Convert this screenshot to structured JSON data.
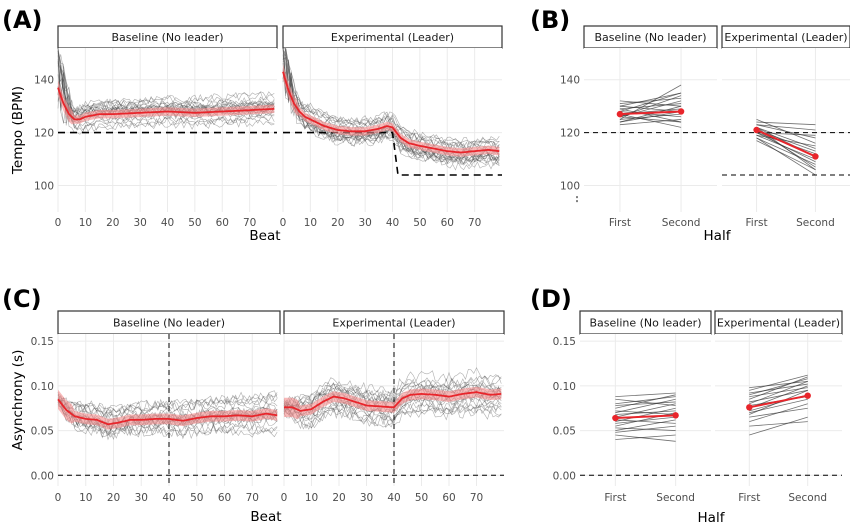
{
  "figure": {
    "panel_letters": [
      "(A)",
      "(B)",
      "(C)",
      "(D)"
    ],
    "colors": {
      "mean_line": "#e8252b",
      "ribbon": "#f48c8c",
      "individual": "#4d4d4d",
      "grid": "#ebebeb"
    }
  },
  "chart_data": [
    {
      "id": "A",
      "type": "line",
      "facets": [
        "Baseline (No leader)",
        "Experimental (Leader)"
      ],
      "xlabel": "Beat",
      "ylabel": "Tempo (BPM)",
      "xlim": [
        0,
        80
      ],
      "ylim": [
        90,
        152
      ],
      "xticks": [
        "0",
        "10",
        "20",
        "30",
        "40",
        "50",
        "60",
        "70"
      ],
      "yticks": [
        "100",
        "120",
        "140"
      ],
      "reference_lines": [
        {
          "facet": 0,
          "points": [
            [
              0,
              120
            ],
            [
              80,
              120
            ]
          ]
        },
        {
          "facet": 1,
          "points": [
            [
              0,
              120
            ],
            [
              40,
              120
            ],
            [
              42,
              104
            ],
            [
              80,
              104
            ]
          ]
        }
      ],
      "mean_series": [
        {
          "facet": 0,
          "x": [
            0,
            2,
            4,
            6,
            8,
            10,
            15,
            20,
            30,
            40,
            50,
            60,
            70,
            79
          ],
          "y": [
            137,
            131,
            127,
            125,
            125,
            126,
            127,
            127,
            127.5,
            128,
            127.5,
            128,
            128.5,
            129
          ]
        },
        {
          "facet": 1,
          "x": [
            0,
            2,
            4,
            6,
            8,
            10,
            15,
            20,
            25,
            30,
            35,
            38,
            40,
            43,
            46,
            50,
            55,
            60,
            65,
            70,
            75,
            79
          ],
          "y": [
            143,
            136,
            131,
            128,
            126,
            125,
            122.5,
            121,
            120.5,
            120.5,
            121.5,
            122.5,
            122,
            118,
            116,
            115,
            114,
            113,
            112.5,
            113,
            113.5,
            113
          ]
        }
      ],
      "individual_trials": 22
    },
    {
      "id": "B",
      "type": "line",
      "facets": [
        "Baseline (No leader)",
        "Experimental (Leader)"
      ],
      "xlabel": "Half",
      "categories": [
        "First",
        "Second"
      ],
      "ylim": [
        90,
        152
      ],
      "yticks": [
        "100",
        "120",
        "140"
      ],
      "reference_lines": [
        {
          "facet": 0,
          "y": 120
        },
        {
          "facet": 1,
          "y": 120
        },
        {
          "facet": 1,
          "y": 104
        }
      ],
      "means": [
        {
          "facet": 0,
          "values": [
            127,
            128
          ]
        },
        {
          "facet": 1,
          "values": [
            121,
            111
          ]
        }
      ],
      "individual_pairs": [
        {
          "facet": 0,
          "pairs": [
            [
              123,
              125
            ],
            [
              124,
              130
            ],
            [
              125,
              127
            ],
            [
              126,
              124
            ],
            [
              126,
              132
            ],
            [
              127,
              129
            ],
            [
              128,
              126
            ],
            [
              128,
              135
            ],
            [
              129,
              131
            ],
            [
              130,
              128
            ],
            [
              131,
              133
            ],
            [
              125,
              138
            ],
            [
              127,
              122
            ],
            [
              129,
              124
            ],
            [
              132,
              130
            ],
            [
              124,
              128
            ],
            [
              126,
              134
            ],
            [
              130,
              135
            ]
          ]
        },
        {
          "facet": 1,
          "pairs": [
            [
              117,
              106
            ],
            [
              118,
              108
            ],
            [
              119,
              110
            ],
            [
              120,
              109
            ],
            [
              120,
              112
            ],
            [
              121,
              113
            ],
            [
              121,
              107
            ],
            [
              122,
              114
            ],
            [
              122,
              111
            ],
            [
              123,
              118
            ],
            [
              123,
              121
            ],
            [
              124,
              123
            ],
            [
              125,
              116
            ],
            [
              118,
              104
            ],
            [
              119,
              115
            ],
            [
              122,
              106
            ],
            [
              120,
              119
            ]
          ]
        }
      ]
    },
    {
      "id": "C",
      "type": "line",
      "facets": [
        "Baseline (No leader)",
        "Experimental (Leader)"
      ],
      "xlabel": "Beat",
      "ylabel": "Asynchrony (s)",
      "xlim": [
        0,
        80
      ],
      "ylim": [
        -0.012,
        0.158
      ],
      "xticks": [
        "0",
        "10",
        "20",
        "30",
        "40",
        "50",
        "60",
        "70"
      ],
      "yticks": [
        "0.00",
        "0.05",
        "0.10",
        "0.15"
      ],
      "reference_lines": [
        {
          "facet": 0,
          "y": 0,
          "x": 40
        },
        {
          "facet": 1,
          "y": 0,
          "x": 40
        }
      ],
      "mean_series": [
        {
          "facet": 0,
          "x": [
            0,
            3,
            6,
            10,
            14,
            18,
            22,
            26,
            30,
            35,
            40,
            45,
            50,
            55,
            60,
            65,
            70,
            75,
            79
          ],
          "y": [
            0.085,
            0.073,
            0.066,
            0.063,
            0.062,
            0.057,
            0.059,
            0.062,
            0.062,
            0.063,
            0.063,
            0.061,
            0.064,
            0.066,
            0.066,
            0.067,
            0.066,
            0.069,
            0.067
          ]
        },
        {
          "facet": 1,
          "x": [
            0,
            3,
            6,
            10,
            14,
            18,
            22,
            26,
            30,
            35,
            40,
            43,
            46,
            50,
            55,
            60,
            65,
            70,
            75,
            79
          ],
          "y": [
            0.076,
            0.076,
            0.072,
            0.074,
            0.082,
            0.088,
            0.086,
            0.082,
            0.078,
            0.077,
            0.076,
            0.086,
            0.09,
            0.091,
            0.09,
            0.088,
            0.091,
            0.093,
            0.09,
            0.091
          ]
        }
      ],
      "individual_trials": 20
    },
    {
      "id": "D",
      "type": "line",
      "facets": [
        "Baseline (No leader)",
        "Experimental (Leader)"
      ],
      "xlabel": "Half",
      "categories": [
        "First",
        "Second"
      ],
      "ylim": [
        -0.012,
        0.158
      ],
      "yticks": [
        "0.00",
        "0.05",
        "0.10",
        "0.15"
      ],
      "reference_lines": [
        {
          "facet": 0,
          "y": 0
        },
        {
          "facet": 1,
          "y": 0
        }
      ],
      "means": [
        {
          "facet": 0,
          "values": [
            0.064,
            0.067
          ]
        },
        {
          "facet": 1,
          "values": [
            0.076,
            0.089
          ]
        }
      ],
      "individual_pairs": [
        {
          "facet": 0,
          "pairs": [
            [
              0.04,
              0.045
            ],
            [
              0.045,
              0.038
            ],
            [
              0.048,
              0.055
            ],
            [
              0.05,
              0.062
            ],
            [
              0.053,
              0.05
            ],
            [
              0.055,
              0.07
            ],
            [
              0.058,
              0.065
            ],
            [
              0.06,
              0.075
            ],
            [
              0.062,
              0.058
            ],
            [
              0.065,
              0.08
            ],
            [
              0.068,
              0.072
            ],
            [
              0.07,
              0.085
            ],
            [
              0.072,
              0.068
            ],
            [
              0.075,
              0.09
            ],
            [
              0.078,
              0.082
            ],
            [
              0.08,
              0.088
            ],
            [
              0.085,
              0.078
            ],
            [
              0.088,
              0.092
            ]
          ]
        },
        {
          "facet": 1,
          "pairs": [
            [
              0.045,
              0.065
            ],
            [
              0.055,
              0.06
            ],
            [
              0.06,
              0.08
            ],
            [
              0.065,
              0.075
            ],
            [
              0.068,
              0.095
            ],
            [
              0.07,
              0.085
            ],
            [
              0.072,
              0.09
            ],
            [
              0.075,
              0.1
            ],
            [
              0.078,
              0.088
            ],
            [
              0.08,
              0.105
            ],
            [
              0.082,
              0.095
            ],
            [
              0.085,
              0.11
            ],
            [
              0.088,
              0.098
            ],
            [
              0.09,
              0.108
            ],
            [
              0.092,
              0.102
            ],
            [
              0.095,
              0.112
            ],
            [
              0.098,
              0.105
            ]
          ]
        }
      ]
    }
  ]
}
